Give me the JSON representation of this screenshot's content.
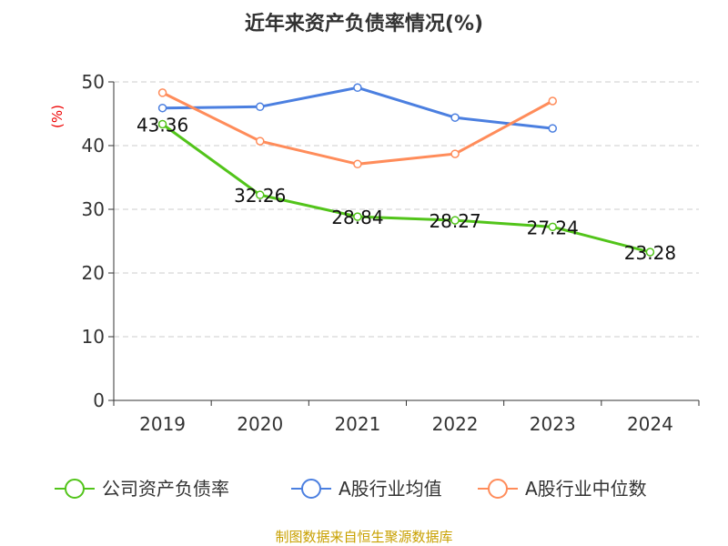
{
  "chart_data": {
    "type": "line",
    "title": "近年来资产负债率情况(%)",
    "ylabel": "(%)",
    "categories": [
      "2019",
      "2020",
      "2021",
      "2022",
      "2023",
      "2024"
    ],
    "ylim": [
      0,
      50
    ],
    "yticks": [
      0,
      10,
      20,
      30,
      40,
      50
    ],
    "grid": true,
    "legend_position": "bottom",
    "series": [
      {
        "name": "公司资产负债率",
        "color": "#52c41a",
        "values": [
          43.36,
          32.26,
          28.84,
          28.27,
          27.24,
          23.28
        ],
        "labels": [
          "43.36",
          "32.26",
          "28.84",
          "28.27",
          "27.24",
          "23.28"
        ]
      },
      {
        "name": "A股行业均值",
        "color": "#4b7fe0",
        "values": [
          45.9,
          46.1,
          49.1,
          44.4,
          42.7,
          null
        ]
      },
      {
        "name": "A股行业中位数",
        "color": "#ff8c5a",
        "values": [
          48.3,
          40.7,
          37.1,
          38.7,
          47.0,
          null
        ]
      }
    ]
  },
  "footer": "制图数据来自恒生聚源数据库"
}
